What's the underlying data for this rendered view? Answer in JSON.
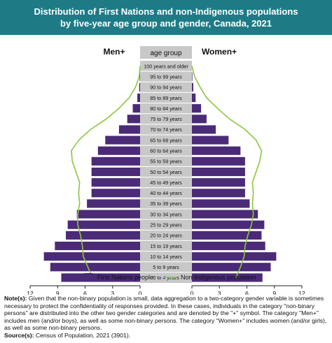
{
  "header": {
    "title_line1": "Distribution of First Nations and non-Indigenous populations",
    "title_line2": "by five-year age group and gender, Canada, 2021"
  },
  "labels": {
    "men": "Men+",
    "women": "Women+",
    "age_group": "age group",
    "xaxis_unit": "%"
  },
  "legend": {
    "bars": "First Nations people",
    "line": "Non-Indigenous population"
  },
  "notes": {
    "note_label": "Note(s):",
    "note_text": " Given that the non-binary population is small, data aggregation to a two-category gender variable is sometimes necessary to protect the confidentiality of responses provided. In these cases, individuals in the category \"non-binary persons\" are distributed into the other two gender categories and are denoted by the \"+\" symbol. The category \"Men+\" includes men (and/or boys), as well as some non-binary persons. The category \"Women+\" includes women (and/or girls), as well as some non-binary persons.",
    "source_label": "Source(s):",
    "source_text": " Census of Population, 2021 (3901)."
  },
  "colors": {
    "header_bg": "#1e7b86",
    "bar": "#4b2a78",
    "line": "#8cc63f",
    "label_box": "#c8c8c8"
  },
  "chart_data": {
    "type": "bar",
    "orientation": "horizontal-population-pyramid",
    "categories": [
      "0 to 4 years",
      "5 to 9 years",
      "10 to 14 years",
      "15 to 19 years",
      "20 to 24 years",
      "25 to 29 years",
      "30 to 34 years",
      "35 to 39 years",
      "40 to 44 years",
      "45 to 49 years",
      "50 to 54 years",
      "55 to 59 years",
      "60 to 64 years",
      "65 to 69 years",
      "70 to 74 years",
      "75 to 79 years",
      "80 to 84 years",
      "85 to 89 years",
      "90 to 94 years",
      "95 to 99 years",
      "100 years and older"
    ],
    "series": [
      {
        "name": "First Nations people",
        "gender": "Men+",
        "kind": "bar",
        "values": [
          8.6,
          9.8,
          10.5,
          9.3,
          8.1,
          7.9,
          6.9,
          5.8,
          5.3,
          5.3,
          5.3,
          5.3,
          4.6,
          3.8,
          2.3,
          1.4,
          0.8,
          0.3,
          0.1,
          0.05,
          0.0
        ]
      },
      {
        "name": "First Nations people",
        "gender": "Women+",
        "kind": "bar",
        "values": [
          7.7,
          8.6,
          9.2,
          8.0,
          7.6,
          7.9,
          7.2,
          6.3,
          5.8,
          5.8,
          5.8,
          5.8,
          5.3,
          4.0,
          2.6,
          1.6,
          1.0,
          0.4,
          0.15,
          0.05,
          0.0
        ]
      },
      {
        "name": "Non-Indigenous population",
        "gender": "Men+",
        "kind": "line",
        "values": [
          5.2,
          5.7,
          6.2,
          6.3,
          6.5,
          6.8,
          6.8,
          6.6,
          6.7,
          6.6,
          7.0,
          7.4,
          7.5,
          6.7,
          5.4,
          3.7,
          2.3,
          1.2,
          0.5,
          0.1,
          0.0
        ]
      },
      {
        "name": "Non-Indigenous population",
        "gender": "Women+",
        "kind": "line",
        "values": [
          4.8,
          5.3,
          5.7,
          5.8,
          6.1,
          6.5,
          6.7,
          6.6,
          6.7,
          6.6,
          7.0,
          7.4,
          7.6,
          7.0,
          5.8,
          4.1,
          2.8,
          1.6,
          0.9,
          0.3,
          0.0
        ]
      }
    ],
    "xticks": [
      "12",
      "9",
      "6",
      "3",
      "0",
      "0",
      "3",
      "6",
      "9",
      "12"
    ],
    "xlim": [
      0,
      12
    ],
    "xlabel": "%",
    "legend_position": "bottom"
  }
}
